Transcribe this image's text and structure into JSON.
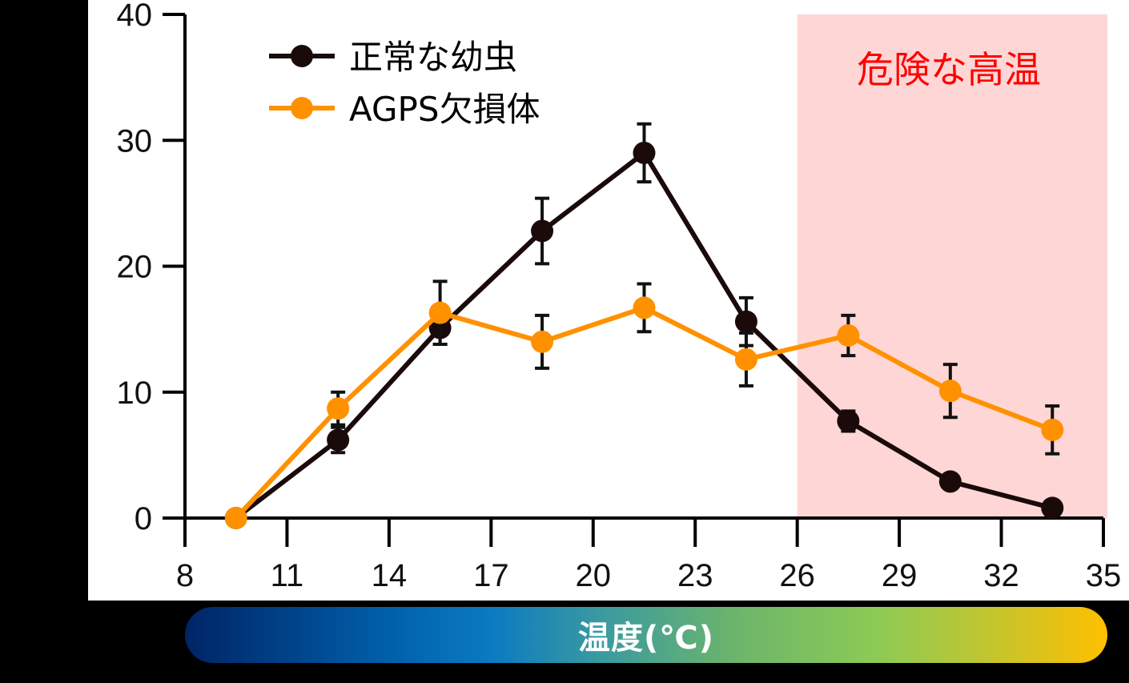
{
  "chart_data": {
    "type": "line",
    "title": "",
    "xlabel": "温度(℃)",
    "ylabel": "",
    "xlim": [
      8,
      35
    ],
    "ylim": [
      0,
      40
    ],
    "x_ticks": [
      8,
      11,
      14,
      17,
      20,
      23,
      26,
      29,
      32,
      35
    ],
    "y_ticks": [
      0,
      10,
      20,
      30,
      40
    ],
    "grid": false,
    "legend_position": "upper-left",
    "x": [
      9.5,
      12.5,
      15.5,
      18.5,
      21.5,
      24.5,
      27.5,
      30.5,
      33.5
    ],
    "series": [
      {
        "name": "正常な幼虫",
        "color": "#1a0a0a",
        "values": [
          0,
          6.2,
          15.1,
          22.8,
          29.0,
          15.6,
          7.7,
          2.9,
          0.8
        ],
        "error": [
          0,
          1.0,
          1.3,
          2.6,
          2.3,
          1.9,
          0.8,
          0,
          0
        ]
      },
      {
        "name": "AGPS欠損体",
        "color": "#ff9100",
        "values": [
          0,
          8.7,
          16.3,
          14.0,
          16.7,
          12.6,
          14.5,
          10.1,
          7.0
        ],
        "error": [
          0,
          1.3,
          2.5,
          2.1,
          1.9,
          2.1,
          1.6,
          2.1,
          1.9
        ]
      }
    ],
    "annotations": [
      {
        "text": "危険な高温",
        "type": "shaded-region",
        "x_range": [
          26,
          35
        ],
        "color": "#ffd6d6",
        "text_color": "#ff0000"
      }
    ]
  },
  "legend": {
    "items": [
      {
        "label": "正常な幼虫",
        "color": "#1a0a0a"
      },
      {
        "label": "AGPS欠損体",
        "color": "#ff9100"
      }
    ]
  },
  "danger_zone": {
    "label": "危険な高温"
  },
  "x_axis": {
    "label": "温度(℃)"
  }
}
